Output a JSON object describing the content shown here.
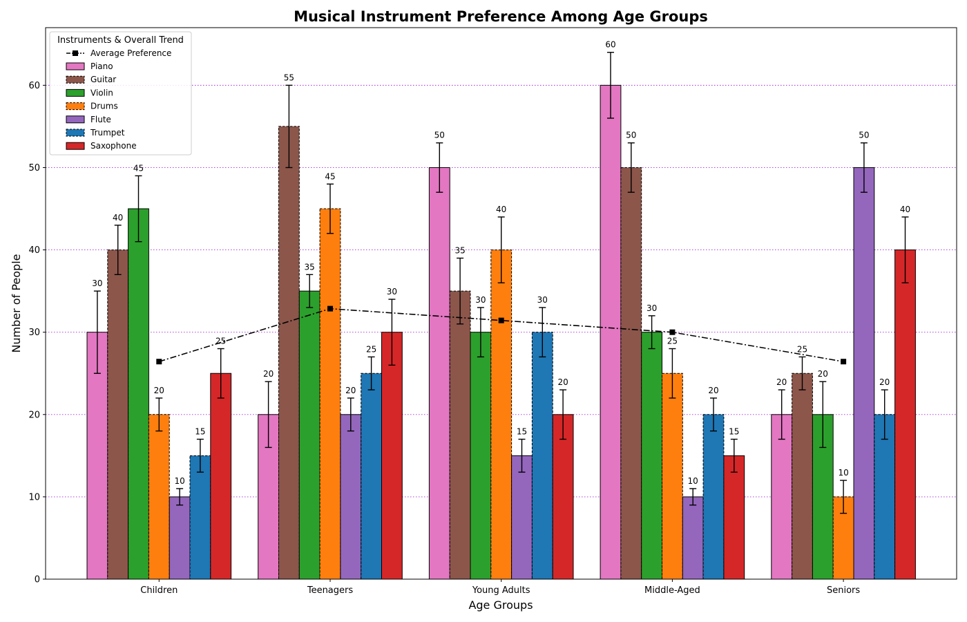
{
  "chart_data": {
    "type": "bar",
    "title": "Musical Instrument Preference Among Age Groups",
    "xlabel": "Age Groups",
    "ylabel": "Number of People",
    "categories": [
      "Children",
      "Teenagers",
      "Young Adults",
      "Middle-Aged",
      "Seniors"
    ],
    "ylim": [
      0,
      67
    ],
    "yticks": [
      0,
      10,
      20,
      30,
      40,
      50,
      60
    ],
    "grid": "horizontal dotted",
    "legend": {
      "title": "Instruments & Overall Trend",
      "placement": "top-left"
    },
    "series": [
      {
        "name": "Piano",
        "color": "#e377c2",
        "dashed": false,
        "values": [
          30,
          20,
          50,
          60,
          20
        ],
        "errors": [
          5,
          4,
          3,
          4,
          3
        ]
      },
      {
        "name": "Guitar",
        "color": "#8c564b",
        "dashed": true,
        "values": [
          40,
          55,
          35,
          50,
          25
        ],
        "errors": [
          3,
          5,
          4,
          3,
          2
        ]
      },
      {
        "name": "Violin",
        "color": "#2ca02c",
        "dashed": false,
        "values": [
          45,
          35,
          30,
          30,
          20
        ],
        "errors": [
          4,
          2,
          3,
          2,
          4
        ]
      },
      {
        "name": "Drums",
        "color": "#ff7f0e",
        "dashed": true,
        "values": [
          20,
          45,
          40,
          25,
          10
        ],
        "errors": [
          2,
          3,
          4,
          3,
          2
        ]
      },
      {
        "name": "Flute",
        "color": "#9467bd",
        "dashed": false,
        "values": [
          10,
          20,
          15,
          10,
          50
        ],
        "errors": [
          1,
          2,
          2,
          1,
          3
        ]
      },
      {
        "name": "Trumpet",
        "color": "#1f77b4",
        "dashed": true,
        "values": [
          15,
          25,
          30,
          20,
          20
        ],
        "errors": [
          2,
          2,
          3,
          2,
          3
        ]
      },
      {
        "name": "Saxophone",
        "color": "#d62728",
        "dashed": false,
        "values": [
          25,
          30,
          20,
          15,
          40
        ],
        "errors": [
          3,
          4,
          3,
          2,
          4
        ]
      }
    ],
    "trend": {
      "name": "Average Preference",
      "color": "#000000",
      "values": [
        26.43,
        32.86,
        31.43,
        30.0,
        26.43
      ]
    }
  }
}
